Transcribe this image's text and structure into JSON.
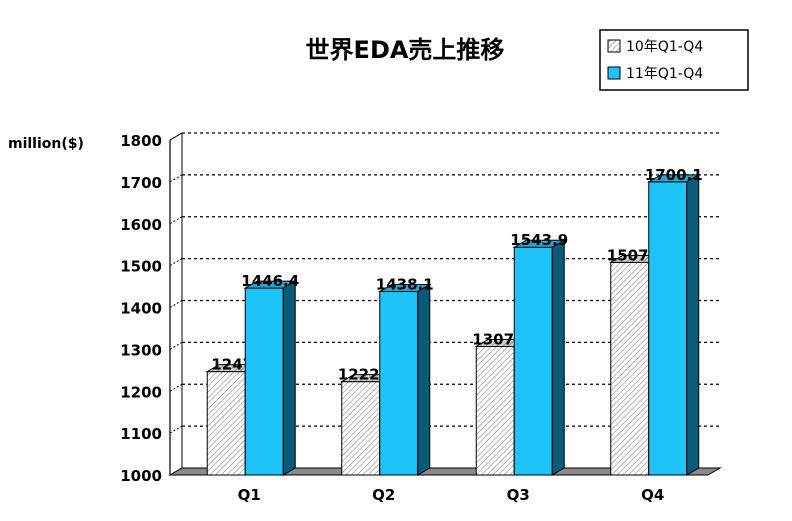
{
  "chart_data": {
    "type": "bar",
    "title": "世界EDA売上推移",
    "ylabel": "million($)",
    "xlabel": "",
    "categories": [
      "Q1",
      "Q2",
      "Q3",
      "Q4"
    ],
    "ylim": [
      1000,
      1800
    ],
    "yticks": [
      "1000",
      "1100",
      "1200",
      "1300",
      "1400",
      "1500",
      "1600",
      "1700",
      "1800"
    ],
    "grid": true,
    "legend_position": "top-right",
    "series": [
      {
        "name": "10年Q1-Q4",
        "values": [
          1247,
          1222.9,
          1307.0,
          1507.7
        ],
        "labels": [
          "1247",
          "1222.9",
          "1307.0",
          "1507.7"
        ],
        "fill": "hatched-white"
      },
      {
        "name": "11年Q1-Q4",
        "values": [
          1446.4,
          1438.1,
          1543.9,
          1700.1
        ],
        "labels": [
          "1446.4",
          "1438.1",
          "1543.9",
          "1700.1"
        ],
        "fill": "#1ec3f8"
      }
    ]
  }
}
